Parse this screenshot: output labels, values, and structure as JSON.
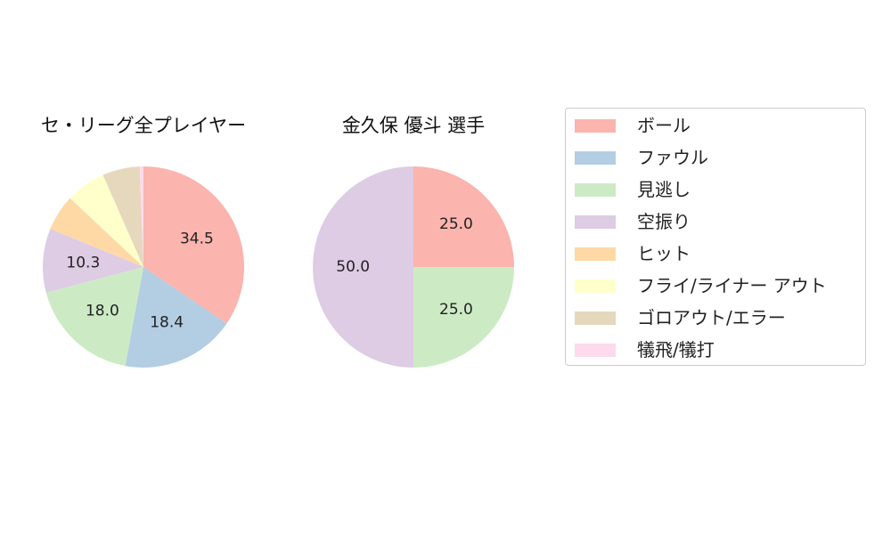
{
  "chart_data": [
    {
      "type": "pie",
      "title": "セ・リーグ全プレイヤー",
      "labels": [
        "ボール",
        "ファウル",
        "見逃し",
        "空振り",
        "ヒット",
        "フライ/ライナー アウト",
        "ゴロアウト/エラー",
        "犠飛/犠打"
      ],
      "values": [
        34.5,
        18.4,
        18.0,
        10.3,
        5.8,
        6.4,
        6.0,
        0.6
      ],
      "data_labels": [
        "34.5",
        "18.4",
        "18.0",
        "10.3",
        "",
        "",
        "",
        ""
      ],
      "start_angle": 90,
      "direction": "clockwise"
    },
    {
      "type": "pie",
      "title": "金久保 優斗  選手",
      "labels": [
        "ボール",
        "ファウル",
        "見逃し",
        "空振り",
        "ヒット",
        "フライ/ライナー アウト",
        "ゴロアウト/エラー",
        "犠飛/犠打"
      ],
      "values": [
        25.0,
        0,
        25.0,
        50.0,
        0,
        0,
        0,
        0
      ],
      "data_labels": [
        "25.0",
        "",
        "25.0",
        "50.0",
        "",
        "",
        "",
        ""
      ],
      "start_angle": 90,
      "direction": "clockwise"
    }
  ],
  "legend": {
    "placement": "right",
    "items": [
      {
        "label": "ボール",
        "color": "#fbb4ae"
      },
      {
        "label": "ファウル",
        "color": "#b3cde3"
      },
      {
        "label": "見逃し",
        "color": "#ccebc5"
      },
      {
        "label": "空振り",
        "color": "#decbe4"
      },
      {
        "label": "ヒット",
        "color": "#fed9a6"
      },
      {
        "label": "フライ/ライナー アウト",
        "color": "#ffffcc"
      },
      {
        "label": "ゴロアウト/エラー",
        "color": "#e5d8bd"
      },
      {
        "label": "犠飛/犠打",
        "color": "#fddaec"
      }
    ]
  }
}
